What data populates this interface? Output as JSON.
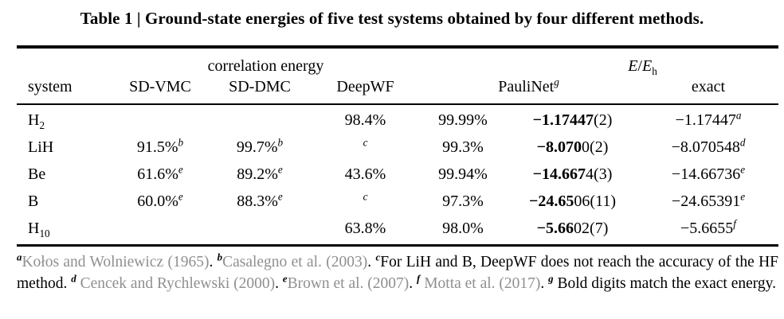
{
  "colors": {
    "citation": "#8f8f8f",
    "text": "#000000",
    "rule": "#000000"
  },
  "title": "Table 1 | Ground-state energies of five test systems obtained by four different methods.",
  "table": {
    "group_headers": {
      "correlation": [
        {
          "t": "correlation energy"
        }
      ],
      "e_eh": [
        {
          "i": "E"
        },
        {
          "t": "/"
        },
        {
          "i": "E"
        },
        {
          "sub": "h"
        }
      ]
    },
    "column_headers": {
      "system": [
        {
          "t": "system"
        }
      ],
      "sdvmc": [
        {
          "t": "SD-VMC"
        }
      ],
      "sddmc": [
        {
          "t": "SD-DMC"
        }
      ],
      "deepwf": [
        {
          "t": "DeepWF"
        }
      ],
      "paulinet": [
        {
          "t": "PauliNet"
        },
        {
          "sup": "g"
        }
      ],
      "exact": [
        {
          "t": "exact"
        }
      ]
    },
    "rows": [
      {
        "system": [
          {
            "t": "H"
          },
          {
            "sub": "2"
          }
        ],
        "sdvmc": [],
        "sddmc": [],
        "deepwf": [
          {
            "t": "98.4%"
          }
        ],
        "pct": [
          {
            "t": "99.99%"
          }
        ],
        "paulinet": [
          {
            "b": "−1.17447"
          },
          {
            "t": "(2)"
          }
        ],
        "exact": [
          {
            "t": "−1.17447"
          },
          {
            "sup": "a"
          }
        ]
      },
      {
        "system": [
          {
            "t": "LiH"
          }
        ],
        "sdvmc": [
          {
            "t": "91.5%"
          },
          {
            "sup": "b"
          }
        ],
        "sddmc": [
          {
            "t": "99.7%"
          },
          {
            "sup": "b"
          }
        ],
        "deepwf": [
          {
            "sup": "c"
          }
        ],
        "pct": [
          {
            "t": "99.3%"
          }
        ],
        "paulinet": [
          {
            "b": "−8.070"
          },
          {
            "t": "0(2)"
          }
        ],
        "exact": [
          {
            "t": "−8.070548"
          },
          {
            "sup": "d"
          }
        ]
      },
      {
        "system": [
          {
            "t": "Be"
          }
        ],
        "sdvmc": [
          {
            "t": "61.6%"
          },
          {
            "sup": "e"
          }
        ],
        "sddmc": [
          {
            "t": "89.2%"
          },
          {
            "sup": "e"
          }
        ],
        "deepwf": [
          {
            "t": "43.6%"
          }
        ],
        "pct": [
          {
            "t": "99.94%"
          }
        ],
        "paulinet": [
          {
            "b": "−14.667"
          },
          {
            "t": "4(3)"
          }
        ],
        "exact": [
          {
            "t": "−14.66736"
          },
          {
            "sup": "e"
          }
        ]
      },
      {
        "system": [
          {
            "t": "B"
          }
        ],
        "sdvmc": [
          {
            "t": "60.0%"
          },
          {
            "sup": "e"
          }
        ],
        "sddmc": [
          {
            "t": "88.3%"
          },
          {
            "sup": "e"
          }
        ],
        "deepwf": [
          {
            "sup": "c"
          }
        ],
        "pct": [
          {
            "t": "97.3%"
          }
        ],
        "paulinet": [
          {
            "b": "−24.65"
          },
          {
            "t": "06(11)"
          }
        ],
        "exact": [
          {
            "t": "−24.65391"
          },
          {
            "sup": "e"
          }
        ]
      },
      {
        "system": [
          {
            "t": "H"
          },
          {
            "sub": "10"
          }
        ],
        "sdvmc": [],
        "sddmc": [],
        "deepwf": [
          {
            "t": "63.8%"
          }
        ],
        "pct": [
          {
            "t": "98.0%"
          }
        ],
        "paulinet": [
          {
            "b": "−5.66"
          },
          {
            "t": "02(7)"
          }
        ],
        "exact": [
          {
            "t": "−5.6655"
          },
          {
            "sup": "f"
          }
        ]
      }
    ]
  },
  "footnotes": [
    {
      "sup": "a"
    },
    {
      "g": "Kołos and Wolniewicz (1965)"
    },
    {
      "t": ". "
    },
    {
      "sup": "b"
    },
    {
      "g": "Casalegno et al. (2003)"
    },
    {
      "t": ". "
    },
    {
      "sup": "c"
    },
    {
      "t": "For LiH and B, DeepWF does not reach the accuracy of the HF method. "
    },
    {
      "sup": "d"
    },
    {
      "t": " "
    },
    {
      "g": "Cencek and Rychlewski (2000)"
    },
    {
      "t": ". "
    },
    {
      "sup": "e"
    },
    {
      "g": "Brown et al. (2007)"
    },
    {
      "t": ". "
    },
    {
      "sup": "f"
    },
    {
      "t": " "
    },
    {
      "g": "Motta et al. (2017)"
    },
    {
      "t": ". "
    },
    {
      "sup": "g"
    },
    {
      "t": " Bold digits match the exact energy."
    }
  ]
}
